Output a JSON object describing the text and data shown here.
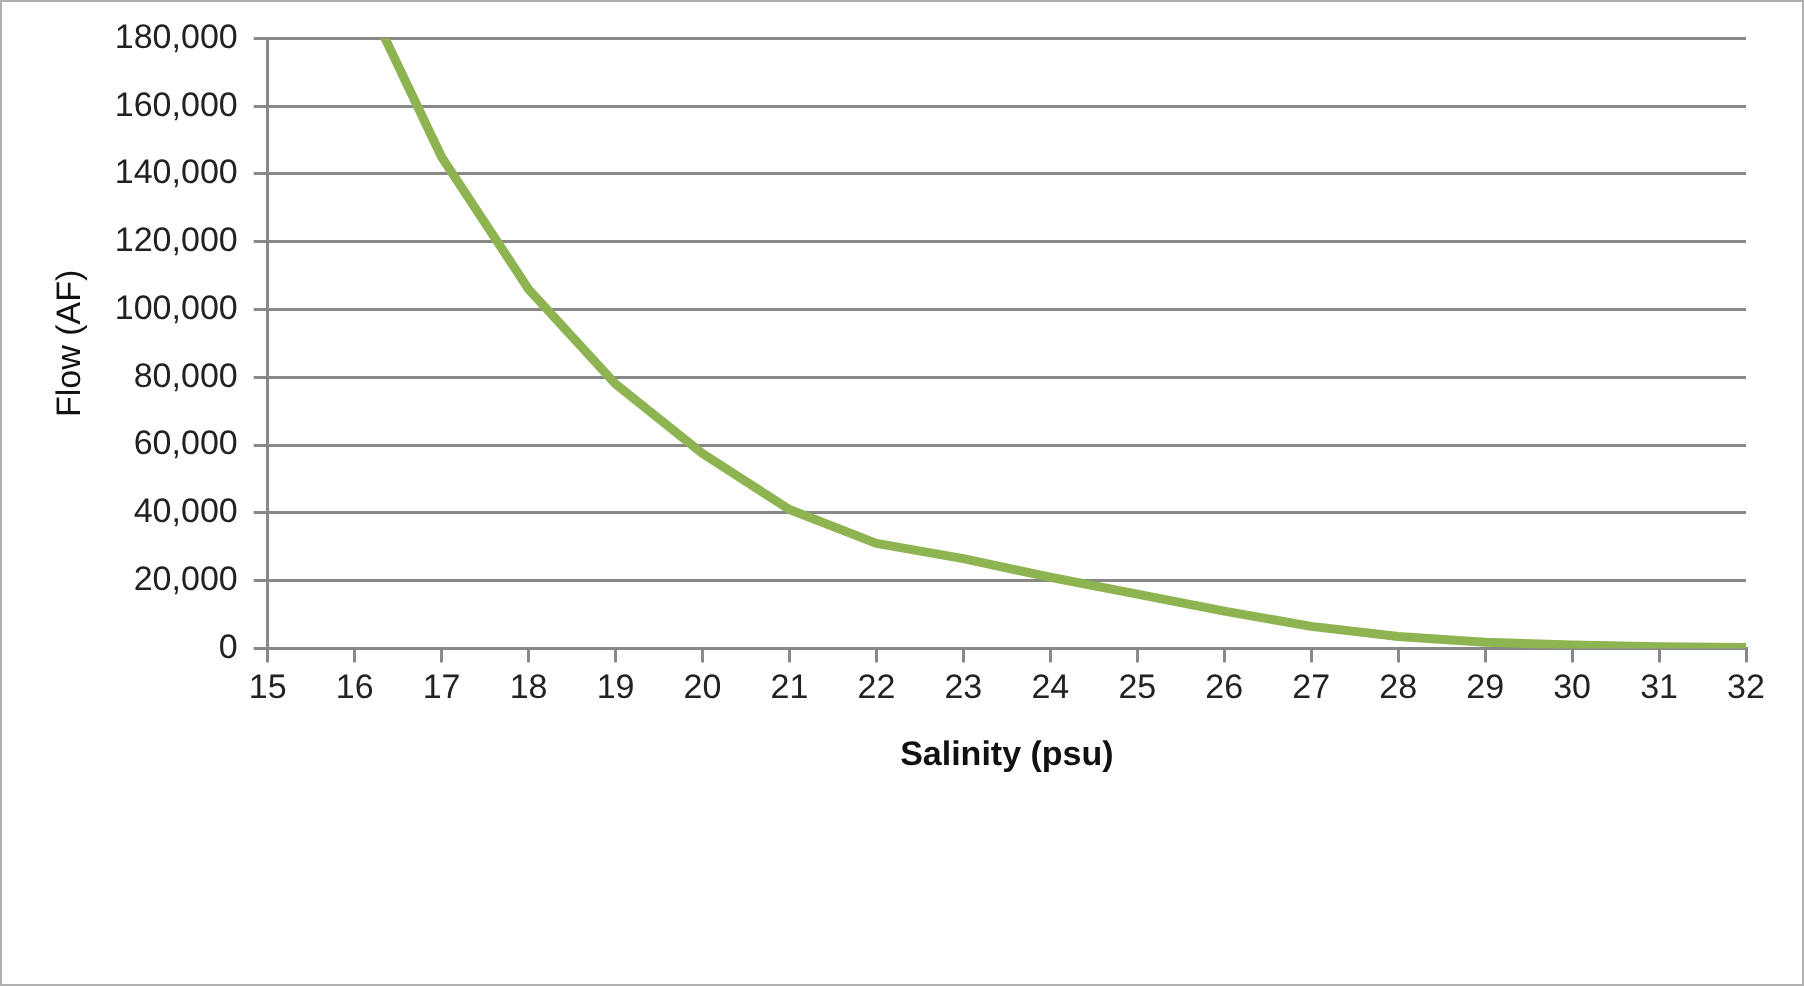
{
  "chart_data": {
    "type": "line",
    "xlabel": "Salinity (psu)",
    "ylabel": "Flow (AF)",
    "xlim": [
      15,
      32
    ],
    "xticks": [
      15,
      16,
      17,
      18,
      19,
      20,
      21,
      22,
      23,
      24,
      25,
      26,
      27,
      28,
      29,
      30,
      31,
      32
    ],
    "ylim": [
      0,
      180000
    ],
    "yticks": [
      {
        "value": 0,
        "label": "0"
      },
      {
        "value": 20000,
        "label": "20,000"
      },
      {
        "value": 40000,
        "label": "40,000"
      },
      {
        "value": 60000,
        "label": "60,000"
      },
      {
        "value": 80000,
        "label": "80,000"
      },
      {
        "value": 100000,
        "label": "100,000"
      },
      {
        "value": 120000,
        "label": "120,000"
      },
      {
        "value": 140000,
        "label": "140,000"
      },
      {
        "value": 160000,
        "label": "160,000"
      },
      {
        "value": 180000,
        "label": "180,000"
      }
    ],
    "grid": "y",
    "marker": "none",
    "line_style": "solid",
    "x": [
      16.35,
      17,
      18,
      19,
      20,
      21,
      22,
      23,
      24,
      25,
      26,
      27,
      28,
      29,
      30,
      31,
      32
    ],
    "series": [
      {
        "color": "#8db450",
        "values": [
          180000,
          145000,
          106000,
          78000,
          57500,
          41000,
          31000,
          26500,
          21000,
          16000,
          11000,
          6500,
          3500,
          1800,
          1000,
          500,
          300
        ]
      }
    ]
  }
}
